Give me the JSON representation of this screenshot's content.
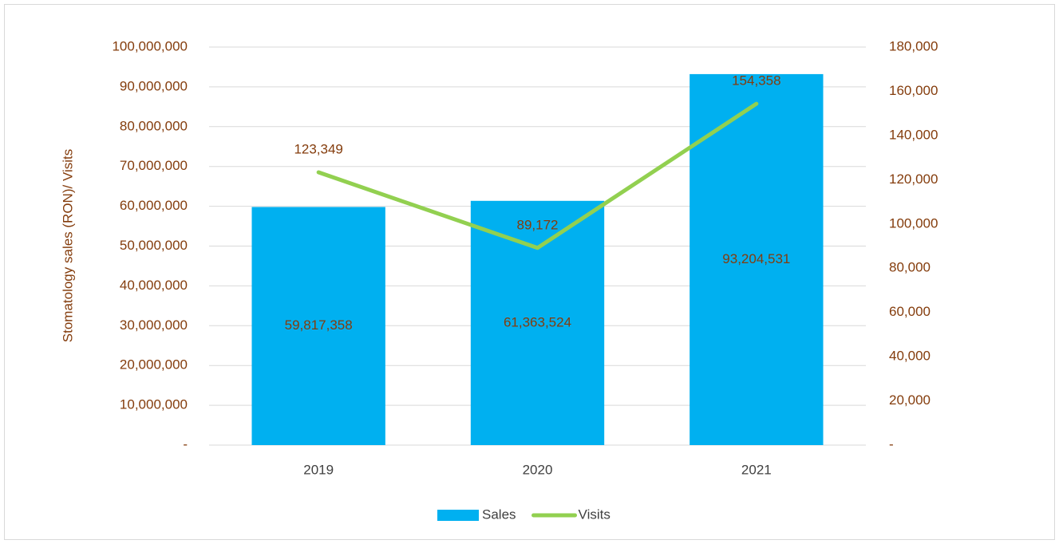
{
  "chart_data": {
    "type": "bar-line",
    "y_label": "Stomatology sales (RON)/ Visits",
    "categories": [
      "2019",
      "2020",
      "2021"
    ],
    "series": [
      {
        "name": "Sales",
        "type": "bar",
        "color": "#00b0f0",
        "values": [
          59817358,
          61363524,
          93204531
        ],
        "value_labels": [
          "59,817,358",
          "61,363,524",
          "93,204,531"
        ]
      },
      {
        "name": "Visits",
        "type": "line",
        "axis": "y2",
        "color": "#92d050",
        "values": [
          123349,
          89172,
          154358
        ],
        "value_labels": [
          "123,349",
          "89,172",
          "154,358"
        ]
      }
    ],
    "ylim": [
      0,
      100000000
    ],
    "yticks": [
      {
        "value": 0,
        "label": "-"
      },
      {
        "value": 10000000,
        "label": "10,000,000"
      },
      {
        "value": 20000000,
        "label": "20,000,000"
      },
      {
        "value": 30000000,
        "label": "30,000,000"
      },
      {
        "value": 40000000,
        "label": "40,000,000"
      },
      {
        "value": 50000000,
        "label": "50,000,000"
      },
      {
        "value": 60000000,
        "label": "60,000,000"
      },
      {
        "value": 70000000,
        "label": "70,000,000"
      },
      {
        "value": 80000000,
        "label": "80,000,000"
      },
      {
        "value": 90000000,
        "label": "90,000,000"
      },
      {
        "value": 100000000,
        "label": "100,000,000"
      }
    ],
    "y2lim": [
      0,
      180000
    ],
    "y2ticks": [
      {
        "value": 0,
        "label": "-"
      },
      {
        "value": 20000,
        "label": "20,000"
      },
      {
        "value": 40000,
        "label": "40,000"
      },
      {
        "value": 60000,
        "label": "60,000"
      },
      {
        "value": 80000,
        "label": "80,000"
      },
      {
        "value": 100000,
        "label": "100,000"
      },
      {
        "value": 120000,
        "label": "120,000"
      },
      {
        "value": 140000,
        "label": "140,000"
      },
      {
        "value": 160000,
        "label": "160,000"
      },
      {
        "value": 180000,
        "label": "180,000"
      }
    ],
    "grid": true,
    "legend": "bottom"
  }
}
